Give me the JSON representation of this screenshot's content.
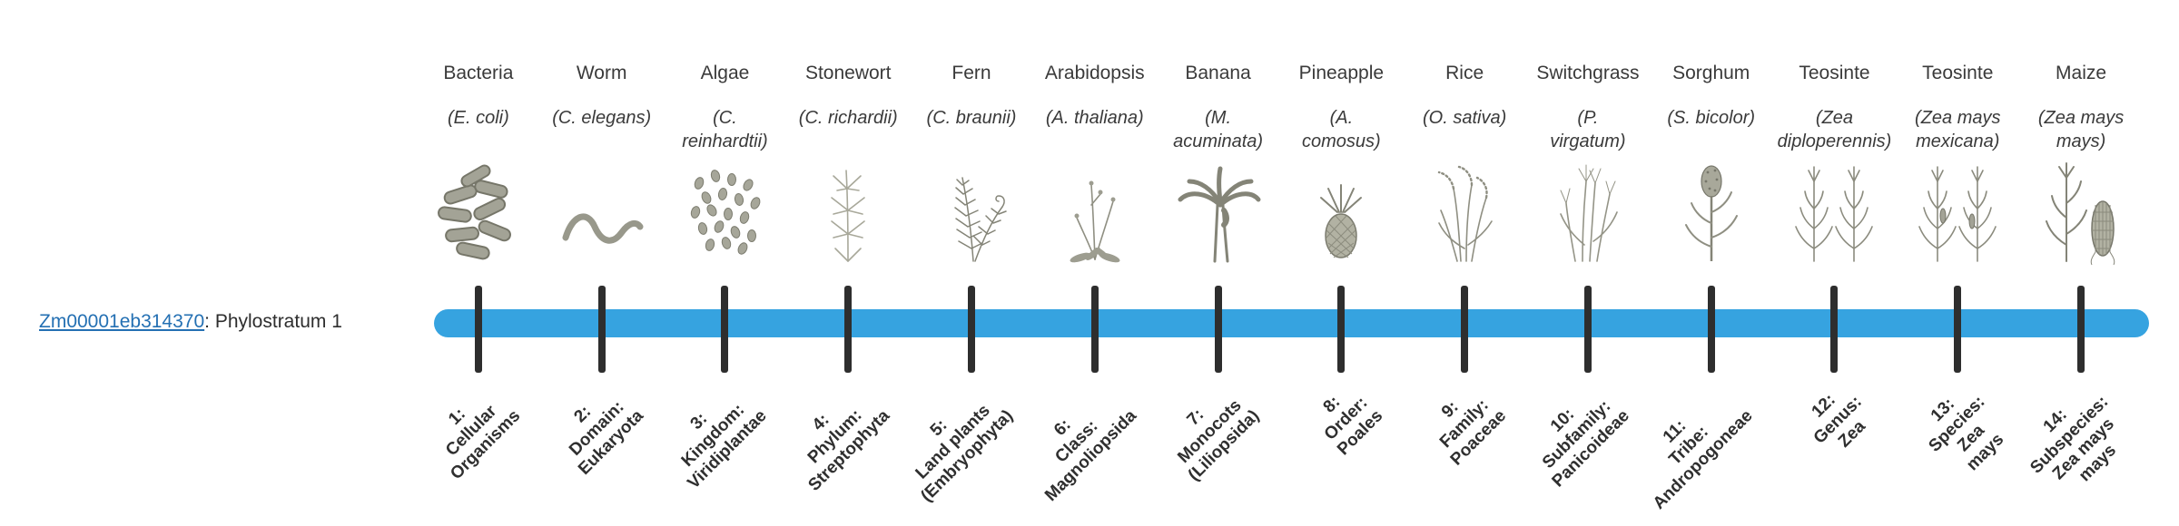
{
  "gene": {
    "link_text": "Zm00001eb314370",
    "suffix": ": Phylostratum 1",
    "link_color": "#2470b3"
  },
  "timeline": {
    "bar_color": "#36a3e0",
    "tick_color": "#2e2e2e"
  },
  "organisms": [
    {
      "name": "Bacteria",
      "sci_lines": [
        "(E. coli)"
      ],
      "icon": "bacteria-icon",
      "stratum_lines": [
        "1:",
        "Cellular",
        "Organisms"
      ]
    },
    {
      "name": "Worm",
      "sci_lines": [
        "(C. elegans)"
      ],
      "icon": "worm-icon",
      "stratum_lines": [
        "2:",
        "Domain:",
        "Eukaryota"
      ]
    },
    {
      "name": "Algae",
      "sci_lines": [
        "(C.",
        "reinhardtii)"
      ],
      "icon": "algae-icon",
      "stratum_lines": [
        "3:",
        "Kingdom:",
        "Viridiplantae"
      ]
    },
    {
      "name": "Stonewort",
      "sci_lines": [
        "(C. richardii)"
      ],
      "icon": "stonewort-icon",
      "stratum_lines": [
        "4:",
        "Phylum:",
        "Streptophyta"
      ]
    },
    {
      "name": "Fern",
      "sci_lines": [
        "(C. braunii)"
      ],
      "icon": "fern-icon",
      "stratum_lines": [
        "5:",
        "Land plants",
        "(Embryophyta)"
      ]
    },
    {
      "name": "Arabidopsis",
      "sci_lines": [
        "(A. thaliana)"
      ],
      "icon": "arabidopsis-icon",
      "stratum_lines": [
        "6:",
        "Class:",
        "Magnoliopsida"
      ]
    },
    {
      "name": "Banana",
      "sci_lines": [
        "(M.",
        "acuminata)"
      ],
      "icon": "banana-icon",
      "stratum_lines": [
        "7:",
        "Monocots",
        "(Liliopsida)"
      ]
    },
    {
      "name": "Pineapple",
      "sci_lines": [
        "(A.",
        "comosus)"
      ],
      "icon": "pineapple-icon",
      "stratum_lines": [
        "8:",
        "Order:",
        "Poales"
      ]
    },
    {
      "name": "Rice",
      "sci_lines": [
        "(O. sativa)"
      ],
      "icon": "rice-icon",
      "stratum_lines": [
        "9:",
        "Family:",
        "Poaceae"
      ]
    },
    {
      "name": "Switchgrass",
      "sci_lines": [
        "(P.",
        "virgatum)"
      ],
      "icon": "switchgrass-icon",
      "stratum_lines": [
        "10:",
        "Subfamily:",
        "Panicoideae"
      ]
    },
    {
      "name": "Sorghum",
      "sci_lines": [
        "(S. bicolor)"
      ],
      "icon": "sorghum-icon",
      "stratum_lines": [
        "11:",
        "Tribe:",
        "Andropogoneae"
      ]
    },
    {
      "name": "Teosinte",
      "sci_lines": [
        "(Zea",
        "diploperennis)"
      ],
      "icon": "teosinte-diploperennis-icon",
      "stratum_lines": [
        "12:",
        "Genus:",
        "Zea"
      ]
    },
    {
      "name": "Teosinte",
      "sci_lines": [
        "(Zea mays",
        "mexicana)"
      ],
      "icon": "teosinte-mexicana-icon",
      "stratum_lines": [
        "13:",
        "Species:",
        "Zea",
        "mays"
      ]
    },
    {
      "name": "Maize",
      "sci_lines": [
        "(Zea mays",
        "mays)"
      ],
      "icon": "maize-icon",
      "stratum_lines": [
        "14:",
        "Subspecies:",
        "Zea mays",
        "mays"
      ]
    }
  ]
}
